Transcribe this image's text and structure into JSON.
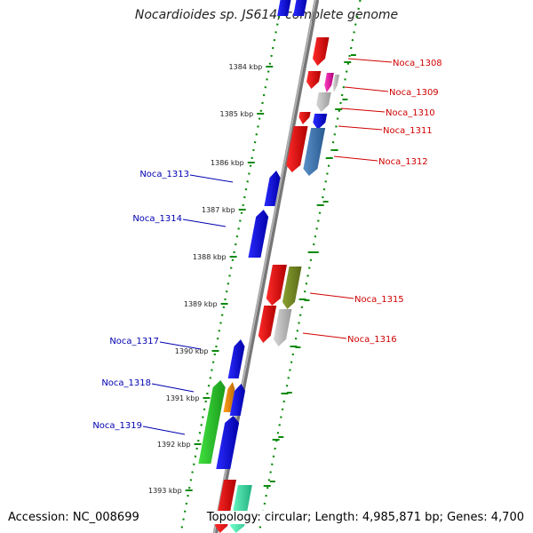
{
  "title": "Nocardioides sp. JS614, complete genome",
  "footer": {
    "accession": "Accession: NC_008699",
    "topology": "Topology: circular; Length: 4,985,871 bp; Genes: 4,700"
  },
  "colors": {
    "forward_label": "#d00000",
    "reverse_label": "#0000b0",
    "backbone": "#777777",
    "tick": "#0a8a0a"
  },
  "kbp_labels": [
    "1384 kbp",
    "1385 kbp",
    "1386 kbp",
    "1387 kbp",
    "1388 kbp",
    "1389 kbp",
    "1390 kbp",
    "1391 kbp",
    "1392 kbp",
    "1393 kbp"
  ],
  "gene_labels": {
    "forward": [
      "Noca_1308",
      "Noca_1309",
      "Noca_1310",
      "Noca_1311",
      "Noca_1312",
      "Noca_1315",
      "Noca_1316"
    ],
    "reverse": [
      "Noca_1313",
      "Noca_1314",
      "Noca_1317",
      "Noca_1318",
      "Noca_1319"
    ]
  },
  "gene_colors": [
    "red",
    "blue",
    "grey",
    "magenta",
    "green",
    "olive",
    "orange",
    "aquamarine",
    "steelblue"
  ]
}
